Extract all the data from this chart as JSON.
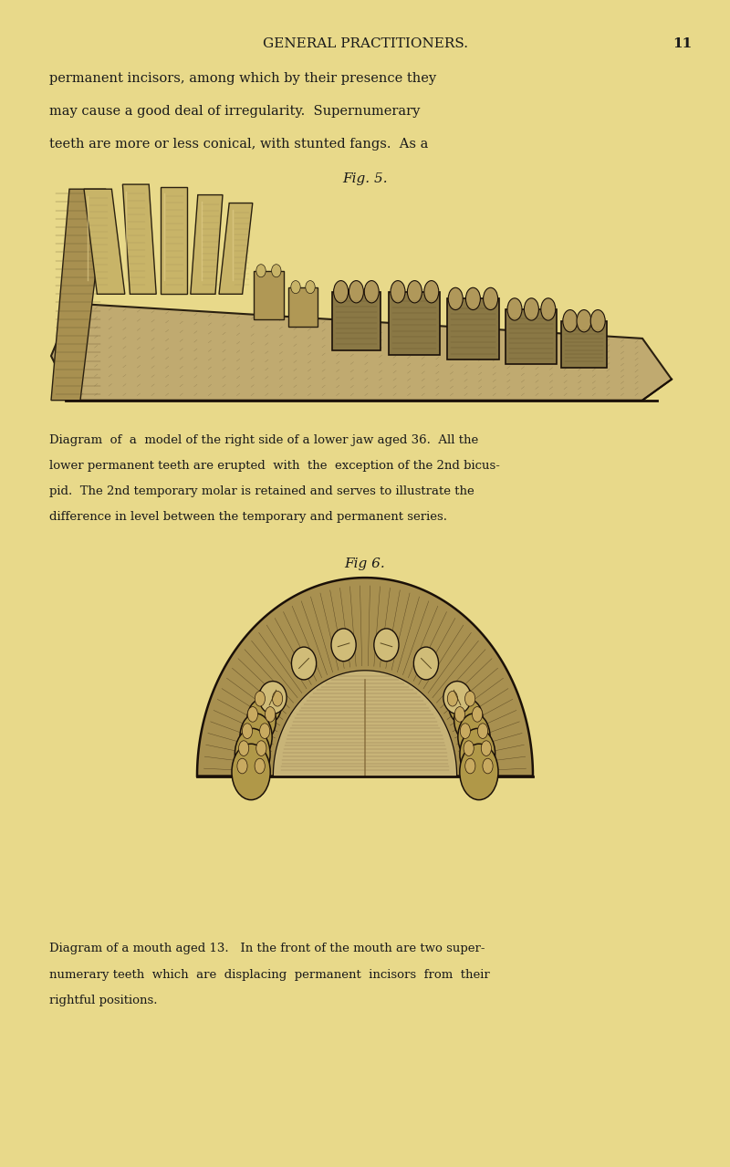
{
  "background_color": "#e8d98a",
  "page_width": 8.0,
  "page_height": 12.79,
  "header_text": "GENERAL PRACTITIONERS.",
  "page_number": "11",
  "intro_text_lines": [
    "permanent incisors, among which by their presence they",
    "may cause a good deal of irregularity.  Supernumerary",
    "teeth are more or less conical, with stunted fangs.  As a"
  ],
  "fig5_label": "Fig. 5.",
  "fig5_caption_lines": [
    "Diagram  of  a  model of the right side of a lower jaw aged 36.  All the",
    "lower permanent teeth are erupted  with  the  exception of the 2nd bicus-",
    "pid.  The 2nd temporary molar is retained and serves to illustrate the",
    "difference in level between the temporary and permanent series."
  ],
  "fig6_label": "Fig 6.",
  "fig6_caption_lines": [
    "Diagram of a mouth aged 13.   In the front of the mouth are two super-",
    "numerary teeth  which  are  displacing  permanent  incisors  from  their",
    "rightful positions."
  ],
  "text_color": "#1a1a1a"
}
